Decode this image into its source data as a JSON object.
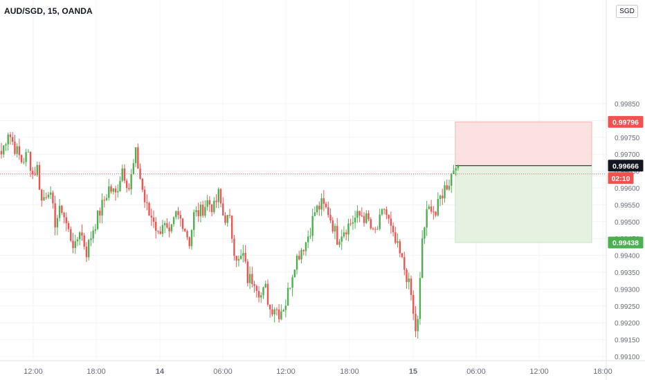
{
  "header": {
    "title": "AUD/SGD, 15, OANDA",
    "currency": "SGD"
  },
  "colors": {
    "up": "#26a69a",
    "up_candle": "#4caf50",
    "down": "#ef5350",
    "risk_zone": "#fcdcdc",
    "reward_zone": "#e2f1de",
    "grid": "#f2f3f5",
    "axis_text": "#6a6d78"
  },
  "chart_data": {
    "type": "candlestick",
    "title": "AUD/SGD, 15, OANDA",
    "ylim": [
      0.99095,
      0.99875
    ],
    "y_ticks": [
      "0.99850",
      "0.99800",
      "0.99750",
      "0.99700",
      "0.99650",
      "0.99600",
      "0.99550",
      "0.99500",
      "0.99450",
      "0.99400",
      "0.99350",
      "0.99300",
      "0.99250",
      "0.99200",
      "0.99150",
      "0.99100"
    ],
    "x_ticks": [
      "12:00",
      "18:00",
      "14",
      "06:00",
      "12:00",
      "18:00",
      "15",
      "06:00",
      "12:00",
      "18:00"
    ],
    "price_path": [
      [
        0,
        0.997
      ],
      [
        3,
        0.9977
      ],
      [
        6,
        0.9972
      ],
      [
        9,
        0.9968
      ],
      [
        12,
        0.997
      ],
      [
        14,
        0.9964
      ],
      [
        16,
        0.9966
      ],
      [
        18,
        0.9956
      ],
      [
        21,
        0.996
      ],
      [
        24,
        0.995
      ],
      [
        27,
        0.9954
      ],
      [
        30,
        0.9947
      ],
      [
        33,
        0.9942
      ],
      [
        35,
        0.9948
      ],
      [
        38,
        0.9941
      ],
      [
        41,
        0.9948
      ],
      [
        44,
        0.9953
      ],
      [
        48,
        0.996
      ],
      [
        51,
        0.9958
      ],
      [
        54,
        0.9966
      ],
      [
        57,
        0.996
      ],
      [
        60,
        0.997
      ],
      [
        62,
        0.9963
      ],
      [
        64,
        0.9956
      ],
      [
        66,
        0.9952
      ],
      [
        68,
        0.9951
      ],
      [
        70,
        0.9946
      ],
      [
        72,
        0.995
      ],
      [
        75,
        0.9945
      ],
      [
        78,
        0.9952
      ],
      [
        81,
        0.995
      ],
      [
        84,
        0.9944
      ],
      [
        86,
        0.9952
      ],
      [
        89,
        0.9953
      ],
      [
        92,
        0.9956
      ],
      [
        95,
        0.9954
      ],
      [
        97,
        0.9958
      ],
      [
        99,
        0.9952
      ],
      [
        102,
        0.995
      ],
      [
        104,
        0.9942
      ],
      [
        106,
        0.9938
      ],
      [
        108,
        0.994
      ],
      [
        110,
        0.9933
      ],
      [
        113,
        0.9933
      ],
      [
        116,
        0.9928
      ],
      [
        118,
        0.993
      ],
      [
        120,
        0.9924
      ],
      [
        122,
        0.9925
      ],
      [
        124,
        0.9923
      ],
      [
        127,
        0.9926
      ],
      [
        129,
        0.9932
      ],
      [
        131,
        0.9938
      ],
      [
        134,
        0.9942
      ],
      [
        136,
        0.9944
      ],
      [
        138,
        0.9948
      ],
      [
        140,
        0.9953
      ],
      [
        143,
        0.9955
      ],
      [
        146,
        0.9953
      ],
      [
        148,
        0.9949
      ],
      [
        150,
        0.9945
      ],
      [
        152,
        0.9947
      ],
      [
        155,
        0.9949
      ],
      [
        158,
        0.9951
      ],
      [
        161,
        0.9952
      ],
      [
        164,
        0.995
      ],
      [
        166,
        0.9946
      ],
      [
        168,
        0.9948
      ],
      [
        171,
        0.9954
      ],
      [
        173,
        0.995
      ],
      [
        175,
        0.9945
      ],
      [
        177,
        0.9942
      ],
      [
        179,
        0.9938
      ],
      [
        181,
        0.9934
      ],
      [
        183,
        0.9928
      ],
      [
        184,
        0.9922
      ],
      [
        185,
        0.9918
      ],
      [
        186,
        0.992
      ],
      [
        187,
        0.9932
      ],
      [
        188,
        0.9945
      ],
      [
        190,
        0.9952
      ],
      [
        192,
        0.9955
      ],
      [
        194,
        0.9952
      ],
      [
        196,
        0.9957
      ],
      [
        198,
        0.996
      ],
      [
        200,
        0.9962
      ],
      [
        202,
        0.9966
      ],
      [
        203,
        0.9968
      ],
      [
        204,
        0.99666
      ]
    ],
    "last_price": 0.99666,
    "countdown": "02:10",
    "position": {
      "stop_loss": 0.99796,
      "entry": 0.99666,
      "target": 0.99438
    },
    "price_labels": {
      "stop_loss": "0.99796",
      "last": "0.99666",
      "countdown": "02:10",
      "target": "0.99438"
    }
  }
}
